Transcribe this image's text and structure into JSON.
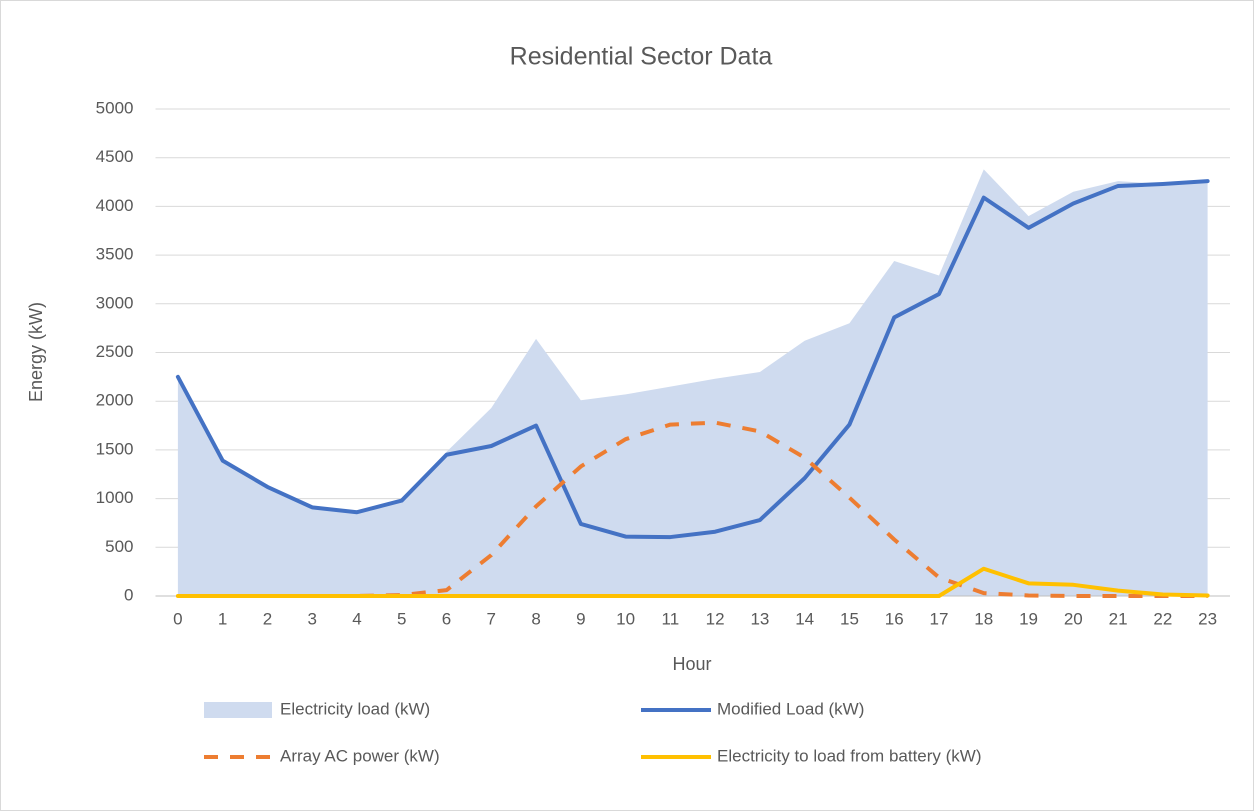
{
  "chart_data": {
    "type": "line",
    "title": "Residential Sector Data",
    "x_label": "Hour",
    "y_label": "Energy (kW)",
    "categories": [
      "0",
      "1",
      "2",
      "3",
      "4",
      "5",
      "6",
      "7",
      "8",
      "9",
      "10",
      "11",
      "12",
      "13",
      "14",
      "15",
      "16",
      "17",
      "18",
      "19",
      "20",
      "21",
      "22",
      "23"
    ],
    "ylim": [
      0,
      5000
    ],
    "yticks": [
      0,
      500,
      1000,
      1500,
      2000,
      2500,
      3000,
      3500,
      4000,
      4500,
      5000
    ],
    "grid": true,
    "legend": "bottom",
    "series": [
      {
        "name": "Electricity load (kW)",
        "type": "area",
        "color": "#cfdbef",
        "values": [
          2250,
          1390,
          1120,
          910,
          860,
          980,
          1480,
          1930,
          2640,
          2010,
          2070,
          2150,
          2230,
          2300,
          2620,
          2800,
          3440,
          3290,
          4380,
          3900,
          4150,
          4260,
          4230,
          4270
        ]
      },
      {
        "name": "Modified Load (kW)",
        "type": "line",
        "color": "#4472c4",
        "values": [
          2250,
          1390,
          1120,
          910,
          860,
          980,
          1450,
          1540,
          1750,
          740,
          610,
          605,
          660,
          780,
          1210,
          1760,
          2860,
          3100,
          4090,
          3780,
          4030,
          4210,
          4230,
          4260
        ]
      },
      {
        "name": "Array AC power (kW)",
        "type": "line",
        "dashed": true,
        "color": "#ed7d31",
        "values": [
          0,
          0,
          0,
          0,
          0,
          10,
          60,
          420,
          920,
          1330,
          1610,
          1760,
          1780,
          1690,
          1420,
          1010,
          580,
          190,
          30,
          5,
          0,
          0,
          0,
          0
        ]
      },
      {
        "name": "Electricity to load from battery (kW)",
        "type": "line",
        "color": "#ffc000",
        "values": [
          0,
          0,
          0,
          0,
          0,
          0,
          0,
          0,
          0,
          0,
          0,
          0,
          0,
          0,
          0,
          0,
          0,
          0,
          280,
          130,
          115,
          55,
          15,
          5
        ]
      }
    ]
  }
}
